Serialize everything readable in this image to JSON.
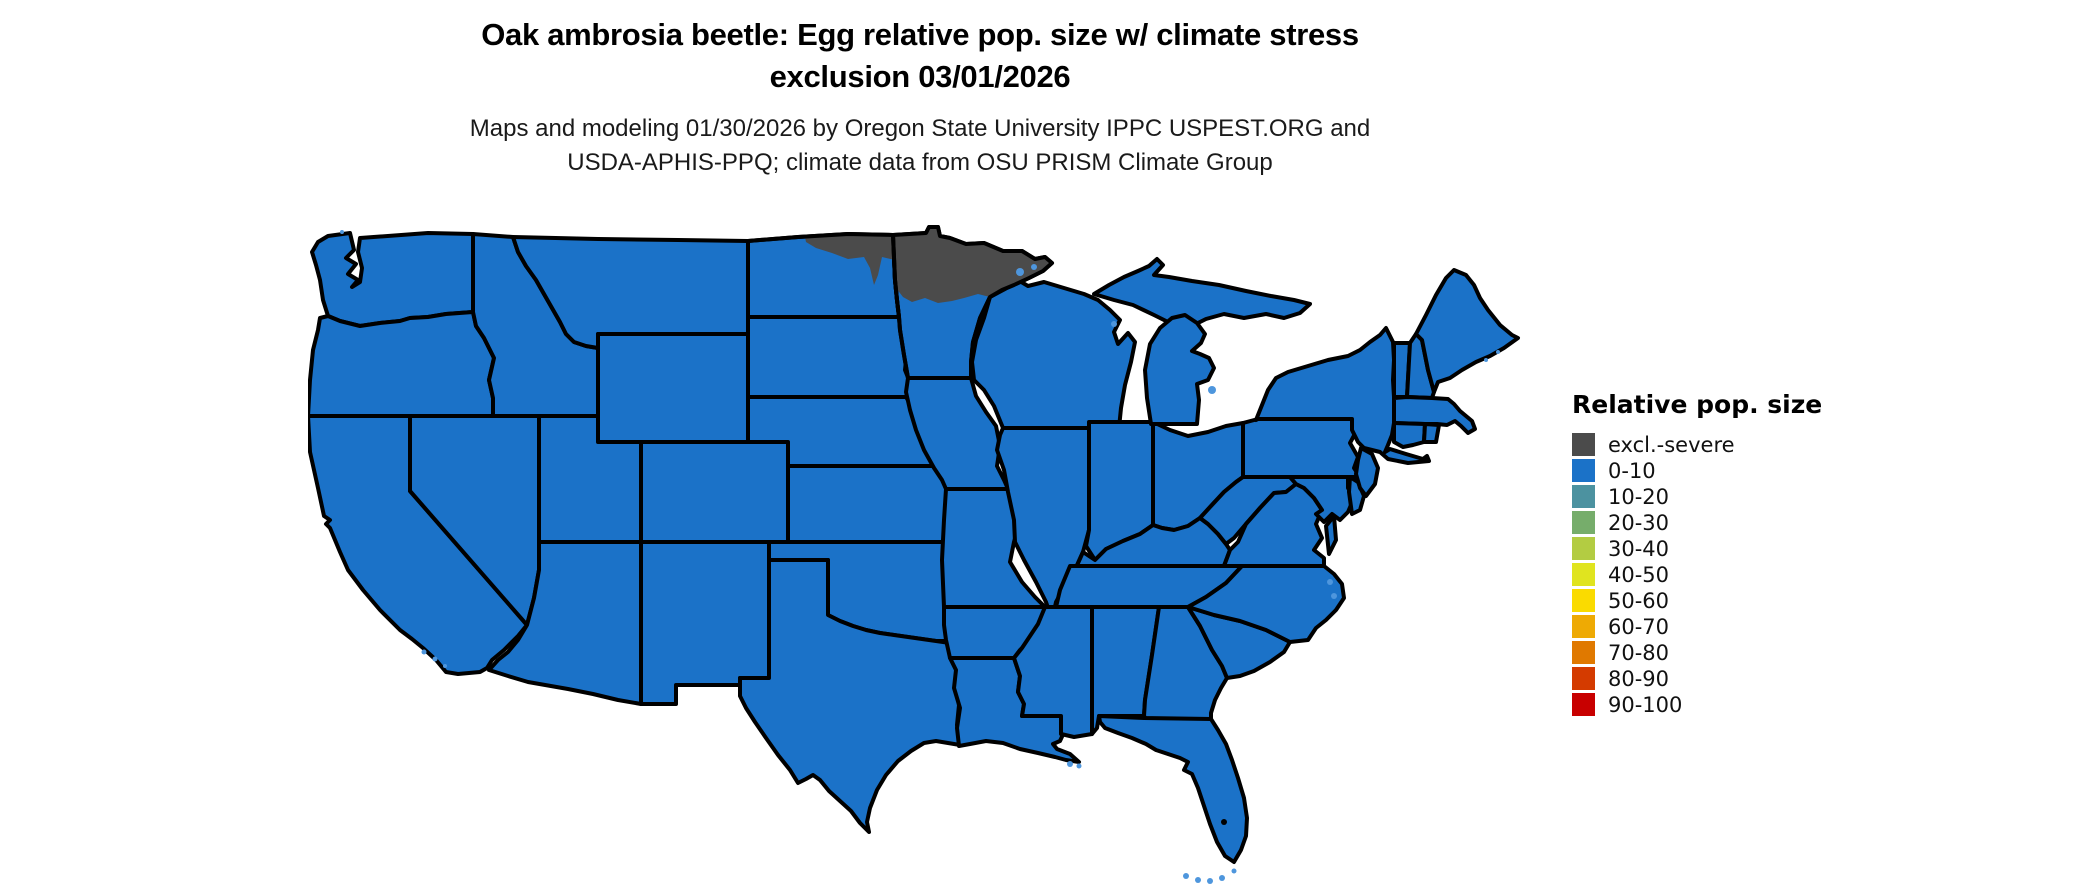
{
  "header": {
    "title_line1": "Oak ambrosia beetle: Egg relative pop. size w/ climate stress",
    "title_line2": "exclusion 03/01/2026",
    "subtitle_line1": "Maps and modeling 01/30/2026 by Oregon State University IPPC USPEST.ORG and",
    "subtitle_line2": "USDA-APHIS-PPQ; climate data from OSU PRISM Climate Group"
  },
  "legend": {
    "title": "Relative pop. size",
    "items": [
      {
        "label": "excl.-severe",
        "color": "#4b4b4b"
      },
      {
        "label": "0-10",
        "color": "#1b72c8"
      },
      {
        "label": "10-20",
        "color": "#4c92a0"
      },
      {
        "label": "20-30",
        "color": "#76ad6b"
      },
      {
        "label": "30-40",
        "color": "#b3cc42"
      },
      {
        "label": "40-50",
        "color": "#e0e41f"
      },
      {
        "label": "50-60",
        "color": "#fadb00"
      },
      {
        "label": "60-70",
        "color": "#eeaa04"
      },
      {
        "label": "70-80",
        "color": "#e07900"
      },
      {
        "label": "80-90",
        "color": "#d43b00"
      },
      {
        "label": "90-100",
        "color": "#c80000"
      }
    ]
  },
  "map": {
    "type": "choropleth",
    "region": "contiguous United States",
    "state_fill_color": "#1b72c8",
    "exclusion_fill_color": "#4b4b4b",
    "border_color": "#000000",
    "water_fringe_color": "#4e96dd",
    "map_data": {
      "measure": "Relative pop. size",
      "default_class": "0-10",
      "exceptions": [
        {
          "region": "northern Minnesota",
          "class": "excl.-severe"
        },
        {
          "region": "northern North Dakota border strip",
          "class": "excl.-severe"
        }
      ]
    }
  }
}
